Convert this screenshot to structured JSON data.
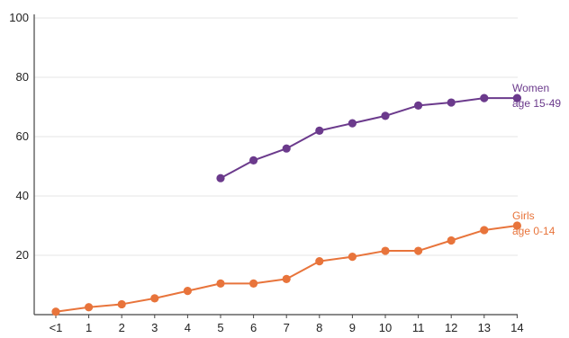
{
  "chart_data": {
    "type": "line",
    "x": [
      "<1",
      "1",
      "2",
      "3",
      "4",
      "5",
      "6",
      "7",
      "8",
      "9",
      "10",
      "11",
      "12",
      "13",
      "14"
    ],
    "ylim": [
      0,
      100
    ],
    "yticks": [
      20,
      40,
      60,
      80,
      100
    ],
    "grid": true,
    "series": [
      {
        "name": "Women age 15-49",
        "label_lines": [
          "Women",
          "age 15-49"
        ],
        "color": "#6b3a8c",
        "values": [
          null,
          null,
          null,
          null,
          null,
          46,
          52,
          56,
          62,
          64.5,
          67,
          70.5,
          71.5,
          73,
          73
        ]
      },
      {
        "name": "Girls age 0-14",
        "label_lines": [
          "Girls",
          "age 0-14"
        ],
        "color": "#e8743b",
        "values": [
          1,
          2.5,
          3.5,
          5.5,
          8,
          10.5,
          10.5,
          12,
          18,
          19.5,
          21.5,
          21.5,
          25,
          28.5,
          30
        ]
      }
    ]
  }
}
